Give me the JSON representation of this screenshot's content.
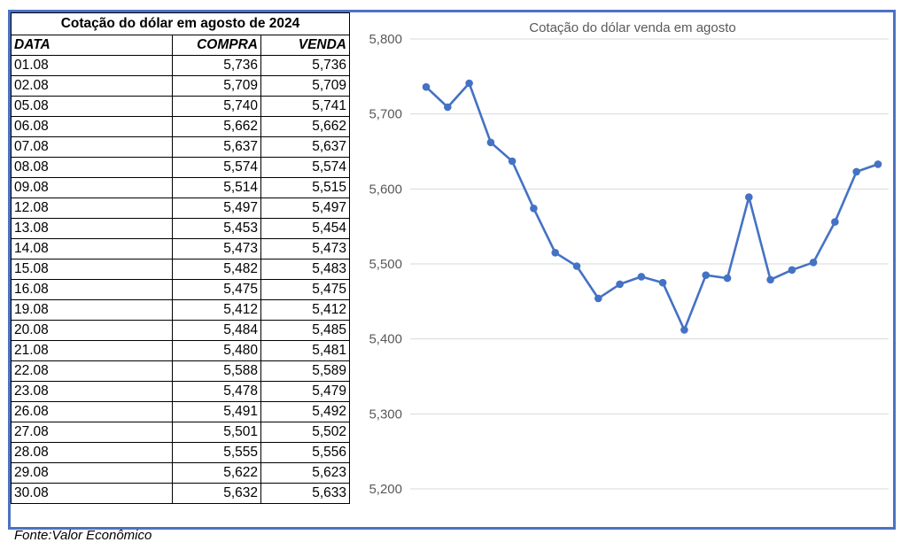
{
  "table": {
    "title": "Cotação do dólar em agosto de 2024",
    "headers": [
      "DATA",
      "COMPRA",
      "VENDA"
    ],
    "rows": [
      [
        "01.08",
        "5,736",
        "5,736"
      ],
      [
        "02.08",
        "5,709",
        "5,709"
      ],
      [
        "05.08",
        "5,740",
        "5,741"
      ],
      [
        "06.08",
        "5,662",
        "5,662"
      ],
      [
        "07.08",
        "5,637",
        "5,637"
      ],
      [
        "08.08",
        "5,574",
        "5,574"
      ],
      [
        "09.08",
        "5,514",
        "5,515"
      ],
      [
        "12.08",
        "5,497",
        "5,497"
      ],
      [
        "13.08",
        "5,453",
        "5,454"
      ],
      [
        "14.08",
        "5,473",
        "5,473"
      ],
      [
        "15.08",
        "5,482",
        "5,483"
      ],
      [
        "16.08",
        "5,475",
        "5,475"
      ],
      [
        "19.08",
        "5,412",
        "5,412"
      ],
      [
        "20.08",
        "5,484",
        "5,485"
      ],
      [
        "21.08",
        "5,480",
        "5,481"
      ],
      [
        "22.08",
        "5,588",
        "5,589"
      ],
      [
        "23.08",
        "5,478",
        "5,479"
      ],
      [
        "26.08",
        "5,491",
        "5,492"
      ],
      [
        "27.08",
        "5,501",
        "5,502"
      ],
      [
        "28.08",
        "5,555",
        "5,556"
      ],
      [
        "29.08",
        "5,622",
        "5,623"
      ],
      [
        "30.08",
        "5,632",
        "5,633"
      ]
    ]
  },
  "source": "Fonte:Valor Econômico",
  "chart_data": {
    "type": "line",
    "title": "Cotação do dólar venda em agosto",
    "xlabel": "",
    "ylabel": "",
    "ylim": [
      5.15,
      5.825
    ],
    "yticks": [
      5.8,
      5.7,
      5.6,
      5.5,
      5.4,
      5.3,
      5.2
    ],
    "ytick_labels": [
      "5,800",
      "5,700",
      "5,600",
      "5,500",
      "5,400",
      "5,300",
      "5,200"
    ],
    "grid": true,
    "legend": "none",
    "line_color": "#4472c4",
    "x": [
      "01.08",
      "02.08",
      "05.08",
      "06.08",
      "07.08",
      "08.08",
      "09.08",
      "12.08",
      "13.08",
      "14.08",
      "15.08",
      "16.08",
      "19.08",
      "20.08",
      "21.08",
      "22.08",
      "23.08",
      "26.08",
      "27.08",
      "28.08",
      "29.08",
      "30.08"
    ],
    "values": [
      5.736,
      5.709,
      5.741,
      5.662,
      5.637,
      5.574,
      5.515,
      5.497,
      5.454,
      5.473,
      5.483,
      5.475,
      5.412,
      5.485,
      5.481,
      5.589,
      5.479,
      5.492,
      5.502,
      5.556,
      5.623,
      5.633
    ]
  }
}
